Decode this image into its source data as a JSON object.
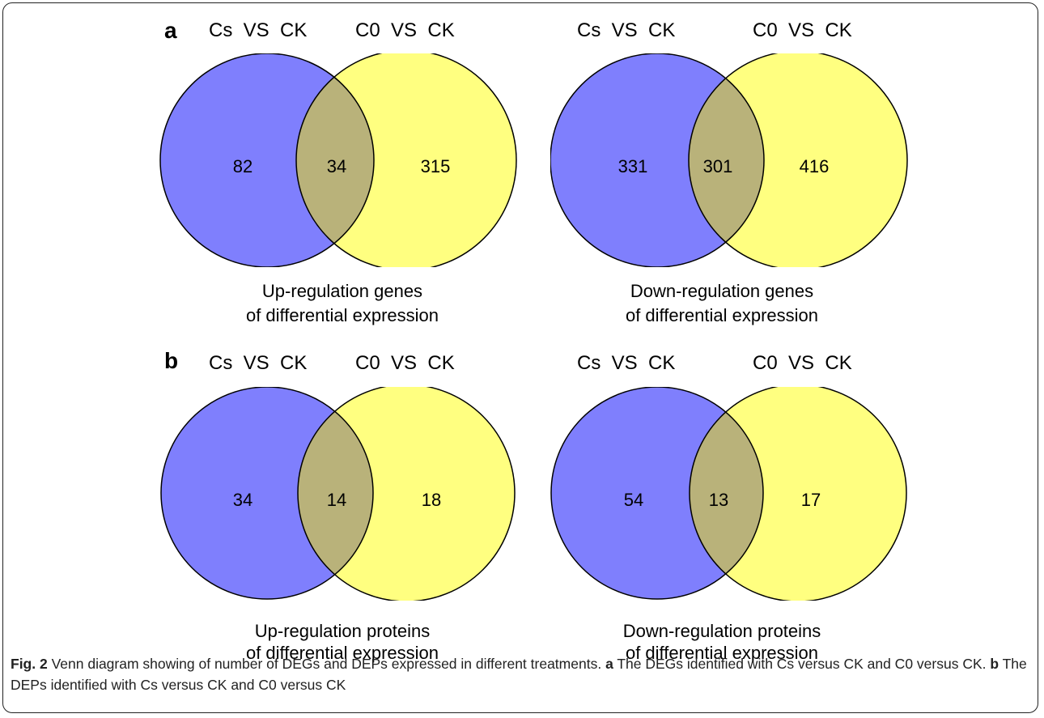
{
  "colors": {
    "set_a": "#7f7ffd",
    "set_b": "#ffff80",
    "overlap": "#b9b27a",
    "border": "#000000"
  },
  "panels": [
    {
      "letter": "a",
      "diagrams": [
        {
          "set_a_label": "Cs  VS  CK",
          "set_b_label": "C0  VS  CK",
          "only_a": "82",
          "both": "34",
          "only_b": "315",
          "caption_line1": "Up-regulation genes",
          "caption_line2": "of differential expression"
        },
        {
          "set_a_label": "Cs  VS  CK",
          "set_b_label": "C0  VS  CK",
          "only_a": "331",
          "both": "301",
          "only_b": "416",
          "caption_line1": "Down-regulation genes",
          "caption_line2": "of differential expression"
        }
      ]
    },
    {
      "letter": "b",
      "diagrams": [
        {
          "set_a_label": "Cs  VS  CK",
          "set_b_label": "C0  VS  CK",
          "only_a": "34",
          "both": "14",
          "only_b": "18",
          "caption_line1": "Up-regulation proteins",
          "caption_line2": "of differential expression"
        },
        {
          "set_a_label": "Cs  VS  CK",
          "set_b_label": "C0  VS  CK",
          "only_a": "54",
          "both": "13",
          "only_b": "17",
          "caption_line1": "Down-regulation proteins",
          "caption_line2": "of differential expression"
        }
      ]
    }
  ],
  "figure_caption": {
    "fig_label": "Fig. 2",
    "main": " Venn diagram showing of number of DEGs and DEPs expressed in different treatments. ",
    "a_label": "a",
    "a_text": " The DEGs identified with Cs versus CK and C0 versus CK. ",
    "b_label": "b",
    "b_text": " The DEPs identified with Cs versus CK and C0 versus CK"
  }
}
